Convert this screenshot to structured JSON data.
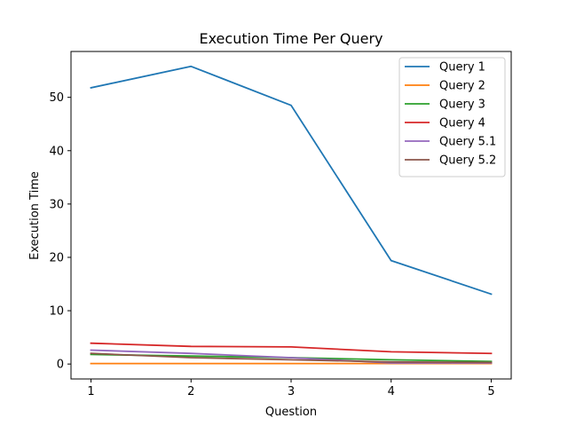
{
  "chart_data": {
    "type": "line",
    "title": "Execution Time Per Query",
    "xlabel": "Question",
    "ylabel": "Execution Time",
    "x": [
      1,
      2,
      3,
      4,
      5
    ],
    "xlim": [
      0.8,
      5.2
    ],
    "ylim": [
      -2.8,
      58.6
    ],
    "xticks": [
      1,
      2,
      3,
      4,
      5
    ],
    "yticks": [
      0,
      10,
      20,
      30,
      40,
      50
    ],
    "grid": false,
    "legend_position": "top-right",
    "series": [
      {
        "name": "Query 1",
        "color": "#1f77b4",
        "values": [
          51.8,
          55.8,
          48.5,
          19.4,
          13.1
        ]
      },
      {
        "name": "Query 2",
        "color": "#ff7f0e",
        "values": [
          0.1,
          0.1,
          0.1,
          0.1,
          0.1
        ]
      },
      {
        "name": "Query 3",
        "color": "#2ca02c",
        "values": [
          1.8,
          1.5,
          1.2,
          0.8,
          0.5
        ]
      },
      {
        "name": "Query 4",
        "color": "#d62728",
        "values": [
          3.9,
          3.3,
          3.2,
          2.3,
          2.0
        ]
      },
      {
        "name": "Query 5.1",
        "color": "#9467bd",
        "values": [
          2.6,
          2.0,
          1.2,
          0.2,
          0.2
        ]
      },
      {
        "name": "Query 5.2",
        "color": "#8c564b",
        "values": [
          2.0,
          1.2,
          0.8,
          0.4,
          0.3
        ]
      }
    ]
  }
}
